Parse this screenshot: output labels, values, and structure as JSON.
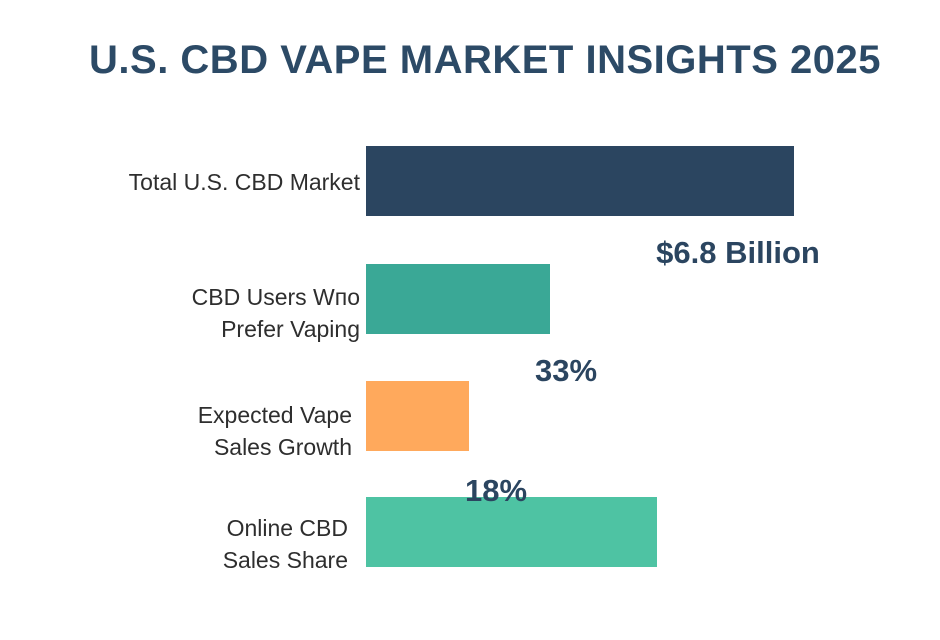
{
  "chart_data": {
    "type": "bar",
    "orientation": "horizontal",
    "title": "U.S. CBD VAPE MARKET INSIGHTS 2025",
    "categories": [
      [
        "Total U.S. CBD Market"
      ],
      [
        "CBD Users Wпо",
        "Prefer Vaping"
      ],
      [
        "Expected Vape",
        "Sales Growth"
      ],
      [
        "Online CBD",
        "Sales Share"
      ]
    ],
    "value_labels": [
      "$6.8 Billion",
      "33%",
      "18%",
      ""
    ],
    "values": [
      1.0,
      0.43,
      0.24,
      0.68
    ],
    "colors": [
      "#2b4560",
      "#3aa896",
      "#ffa95c",
      "#4ec3a3"
    ],
    "xlabel": "",
    "ylabel": "",
    "xlim": [
      0,
      1
    ]
  }
}
